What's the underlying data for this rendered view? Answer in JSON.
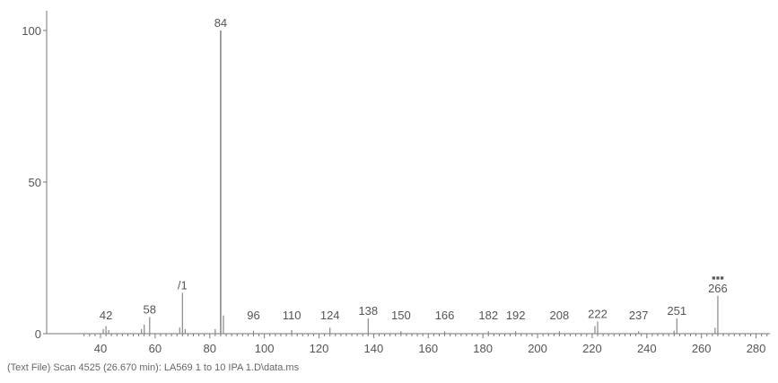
{
  "chart_data": {
    "type": "bar",
    "title": "",
    "xlabel": "",
    "ylabel": "",
    "xlim": [
      30,
      285
    ],
    "ylim": [
      0,
      105
    ],
    "x_ticks": [
      40,
      60,
      80,
      100,
      120,
      140,
      160,
      180,
      200,
      220,
      240,
      260,
      280
    ],
    "y_ticks": [
      0,
      50,
      100
    ],
    "grid": false,
    "peaks": [
      {
        "mz": 41,
        "abundance": 1.5
      },
      {
        "mz": 42,
        "abundance": 2.5,
        "label": "42"
      },
      {
        "mz": 43,
        "abundance": 1.2
      },
      {
        "mz": 55,
        "abundance": 1.5
      },
      {
        "mz": 56,
        "abundance": 3.0
      },
      {
        "mz": 58,
        "abundance": 5.5,
        "label": "58"
      },
      {
        "mz": 69,
        "abundance": 2.0
      },
      {
        "mz": 70,
        "abundance": 13.5,
        "label": "/1"
      },
      {
        "mz": 71,
        "abundance": 1.5
      },
      {
        "mz": 82,
        "abundance": 1.5
      },
      {
        "mz": 84,
        "abundance": 100,
        "label": "84"
      },
      {
        "mz": 85,
        "abundance": 6.0
      },
      {
        "mz": 96,
        "abundance": 1.0,
        "label": "96"
      },
      {
        "mz": 110,
        "abundance": 1.2,
        "label": "110"
      },
      {
        "mz": 124,
        "abundance": 2.0,
        "label": "124"
      },
      {
        "mz": 138,
        "abundance": 5.0,
        "label": "138"
      },
      {
        "mz": 150,
        "abundance": 0.8,
        "label": "150"
      },
      {
        "mz": 166,
        "abundance": 0.8,
        "label": "166"
      },
      {
        "mz": 182,
        "abundance": 0.8,
        "label": "182"
      },
      {
        "mz": 192,
        "abundance": 0.8,
        "label": "192"
      },
      {
        "mz": 208,
        "abundance": 0.8,
        "label": "208"
      },
      {
        "mz": 221,
        "abundance": 2.5
      },
      {
        "mz": 222,
        "abundance": 4.0,
        "label": "222"
      },
      {
        "mz": 237,
        "abundance": 0.8,
        "label": "237"
      },
      {
        "mz": 250,
        "abundance": 1.0
      },
      {
        "mz": 251,
        "abundance": 5.0,
        "label": "251"
      },
      {
        "mz": 265,
        "abundance": 2.0
      },
      {
        "mz": 266,
        "abundance": 12.5,
        "label": "266"
      }
    ],
    "annotations": [
      "▪▪▪"
    ]
  },
  "caption": "(Text File) Scan 4525 (26.670 min): LA569 1 to 10 IPA 1.D\\data.ms",
  "colors": {
    "axis": "#777777",
    "peak": "#888888",
    "text": "#555555"
  }
}
